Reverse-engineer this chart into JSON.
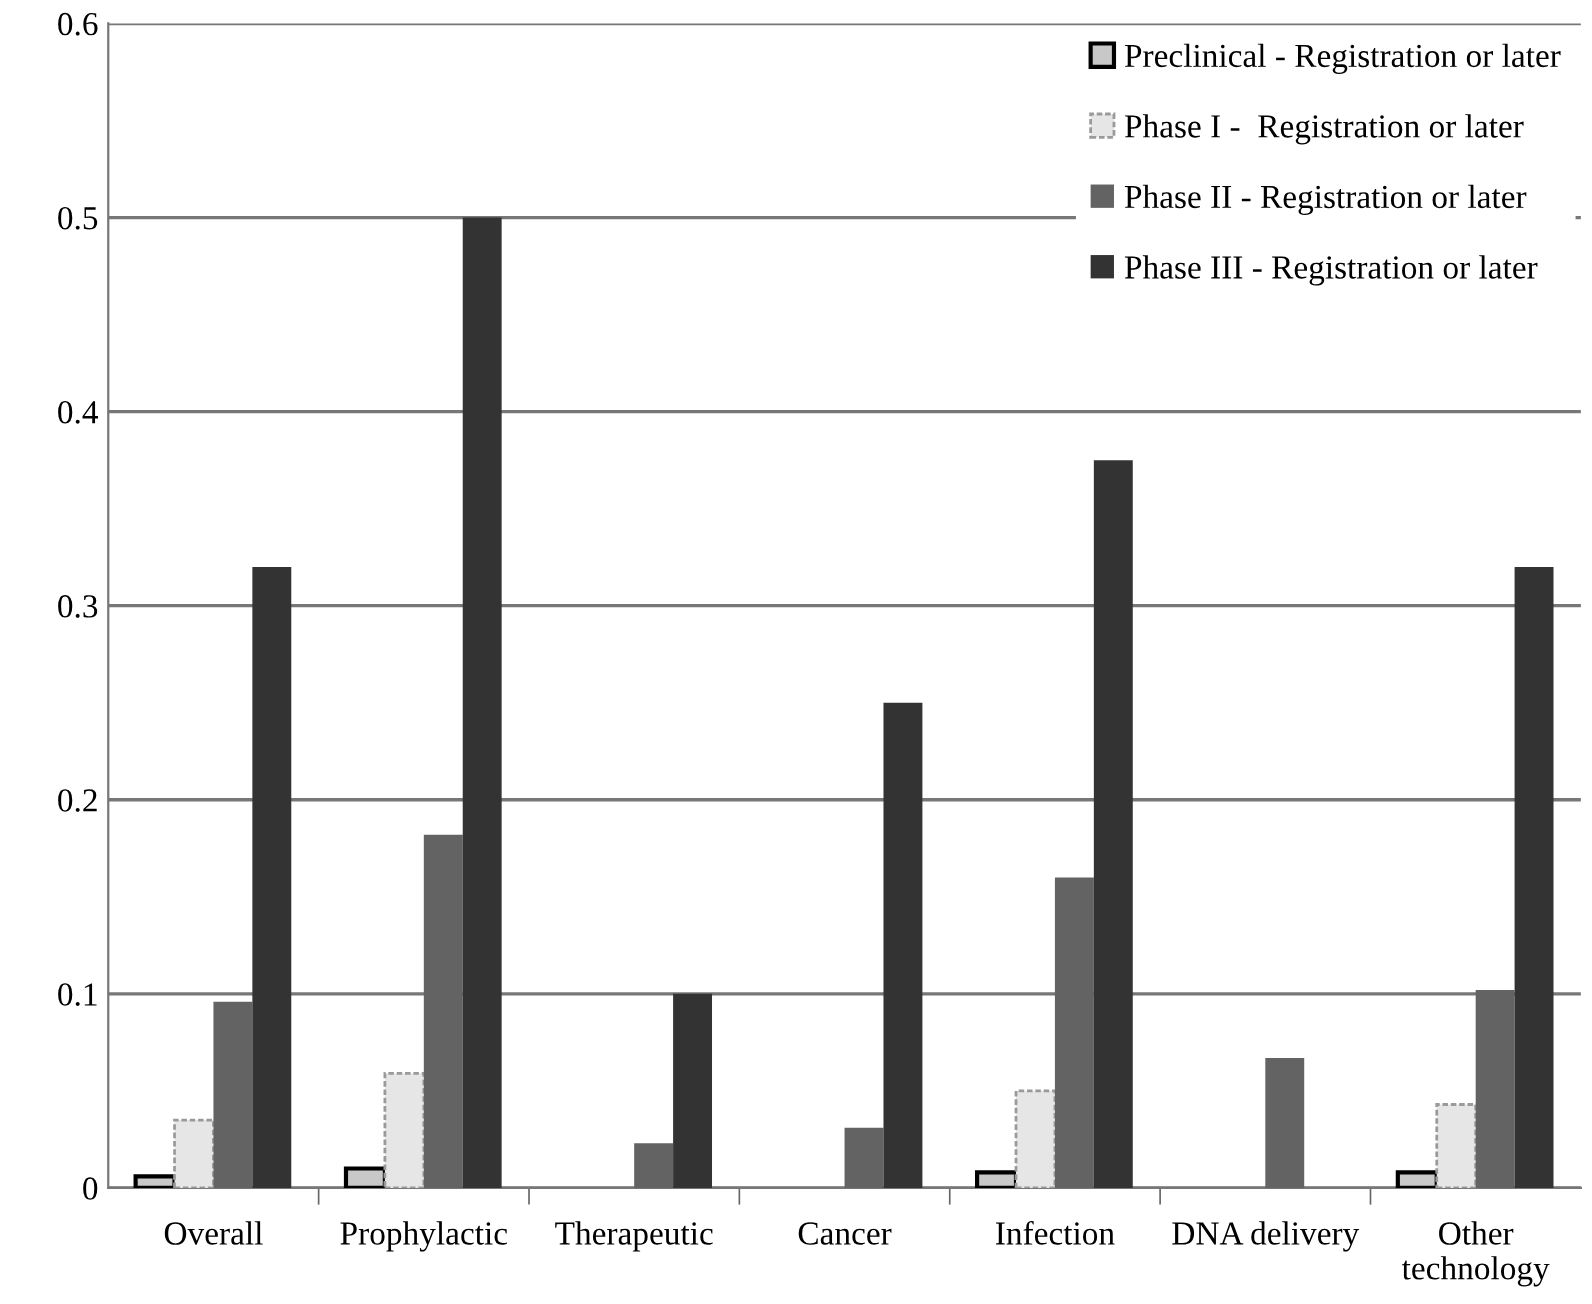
{
  "chart_data": {
    "type": "bar",
    "categories": [
      "Overall",
      "Prophylactic",
      "Therapeutic",
      "Cancer",
      "Infection",
      "DNA delivery",
      "Other\ntechnology"
    ],
    "series": [
      {
        "name": "Preclinical - Registration or later",
        "color": "#c8c8c8",
        "values": [
          0.006,
          0.01,
          0,
          0,
          0.008,
          0,
          0.008
        ]
      },
      {
        "name": "Phase I -  Registration or later",
        "color": "#e6e6e6",
        "values": [
          0.035,
          0.059,
          0,
          0,
          0.05,
          0,
          0.043
        ]
      },
      {
        "name": "Phase II - Registration or later",
        "color": "#636363",
        "values": [
          0.096,
          0.182,
          0.023,
          0.031,
          0.16,
          0.067,
          0.102
        ]
      },
      {
        "name": "Phase III - Registration or later",
        "color": "#333333",
        "values": [
          0.32,
          0.5,
          0.1,
          0.25,
          0.375,
          0,
          0.32
        ]
      }
    ],
    "ylim": [
      0,
      0.6
    ],
    "yticks": [
      {
        "value": 0,
        "label": "0"
      },
      0.1,
      0.2,
      0.3,
      0.4,
      0.5,
      0.6
    ],
    "grid": "y",
    "legend": "top right"
  }
}
